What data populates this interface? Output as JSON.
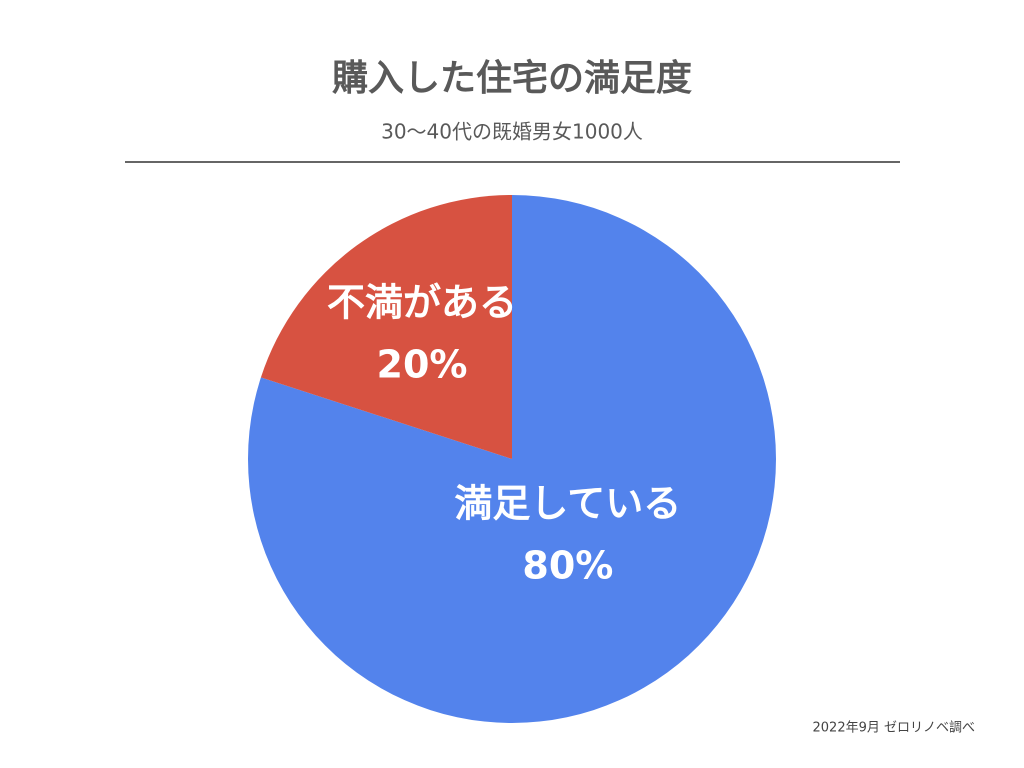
{
  "chart_data": {
    "type": "pie",
    "title": "購入した住宅の満足度",
    "subtitle": "30〜40代の既婚男女1000人",
    "source": "2022年9月 ゼロリノベ調べ",
    "categories": [
      "満足している",
      "不満がある"
    ],
    "values": [
      80,
      20
    ],
    "value_labels": [
      "80%",
      "20%"
    ],
    "colors": [
      "#5383ec",
      "#d75241"
    ]
  }
}
